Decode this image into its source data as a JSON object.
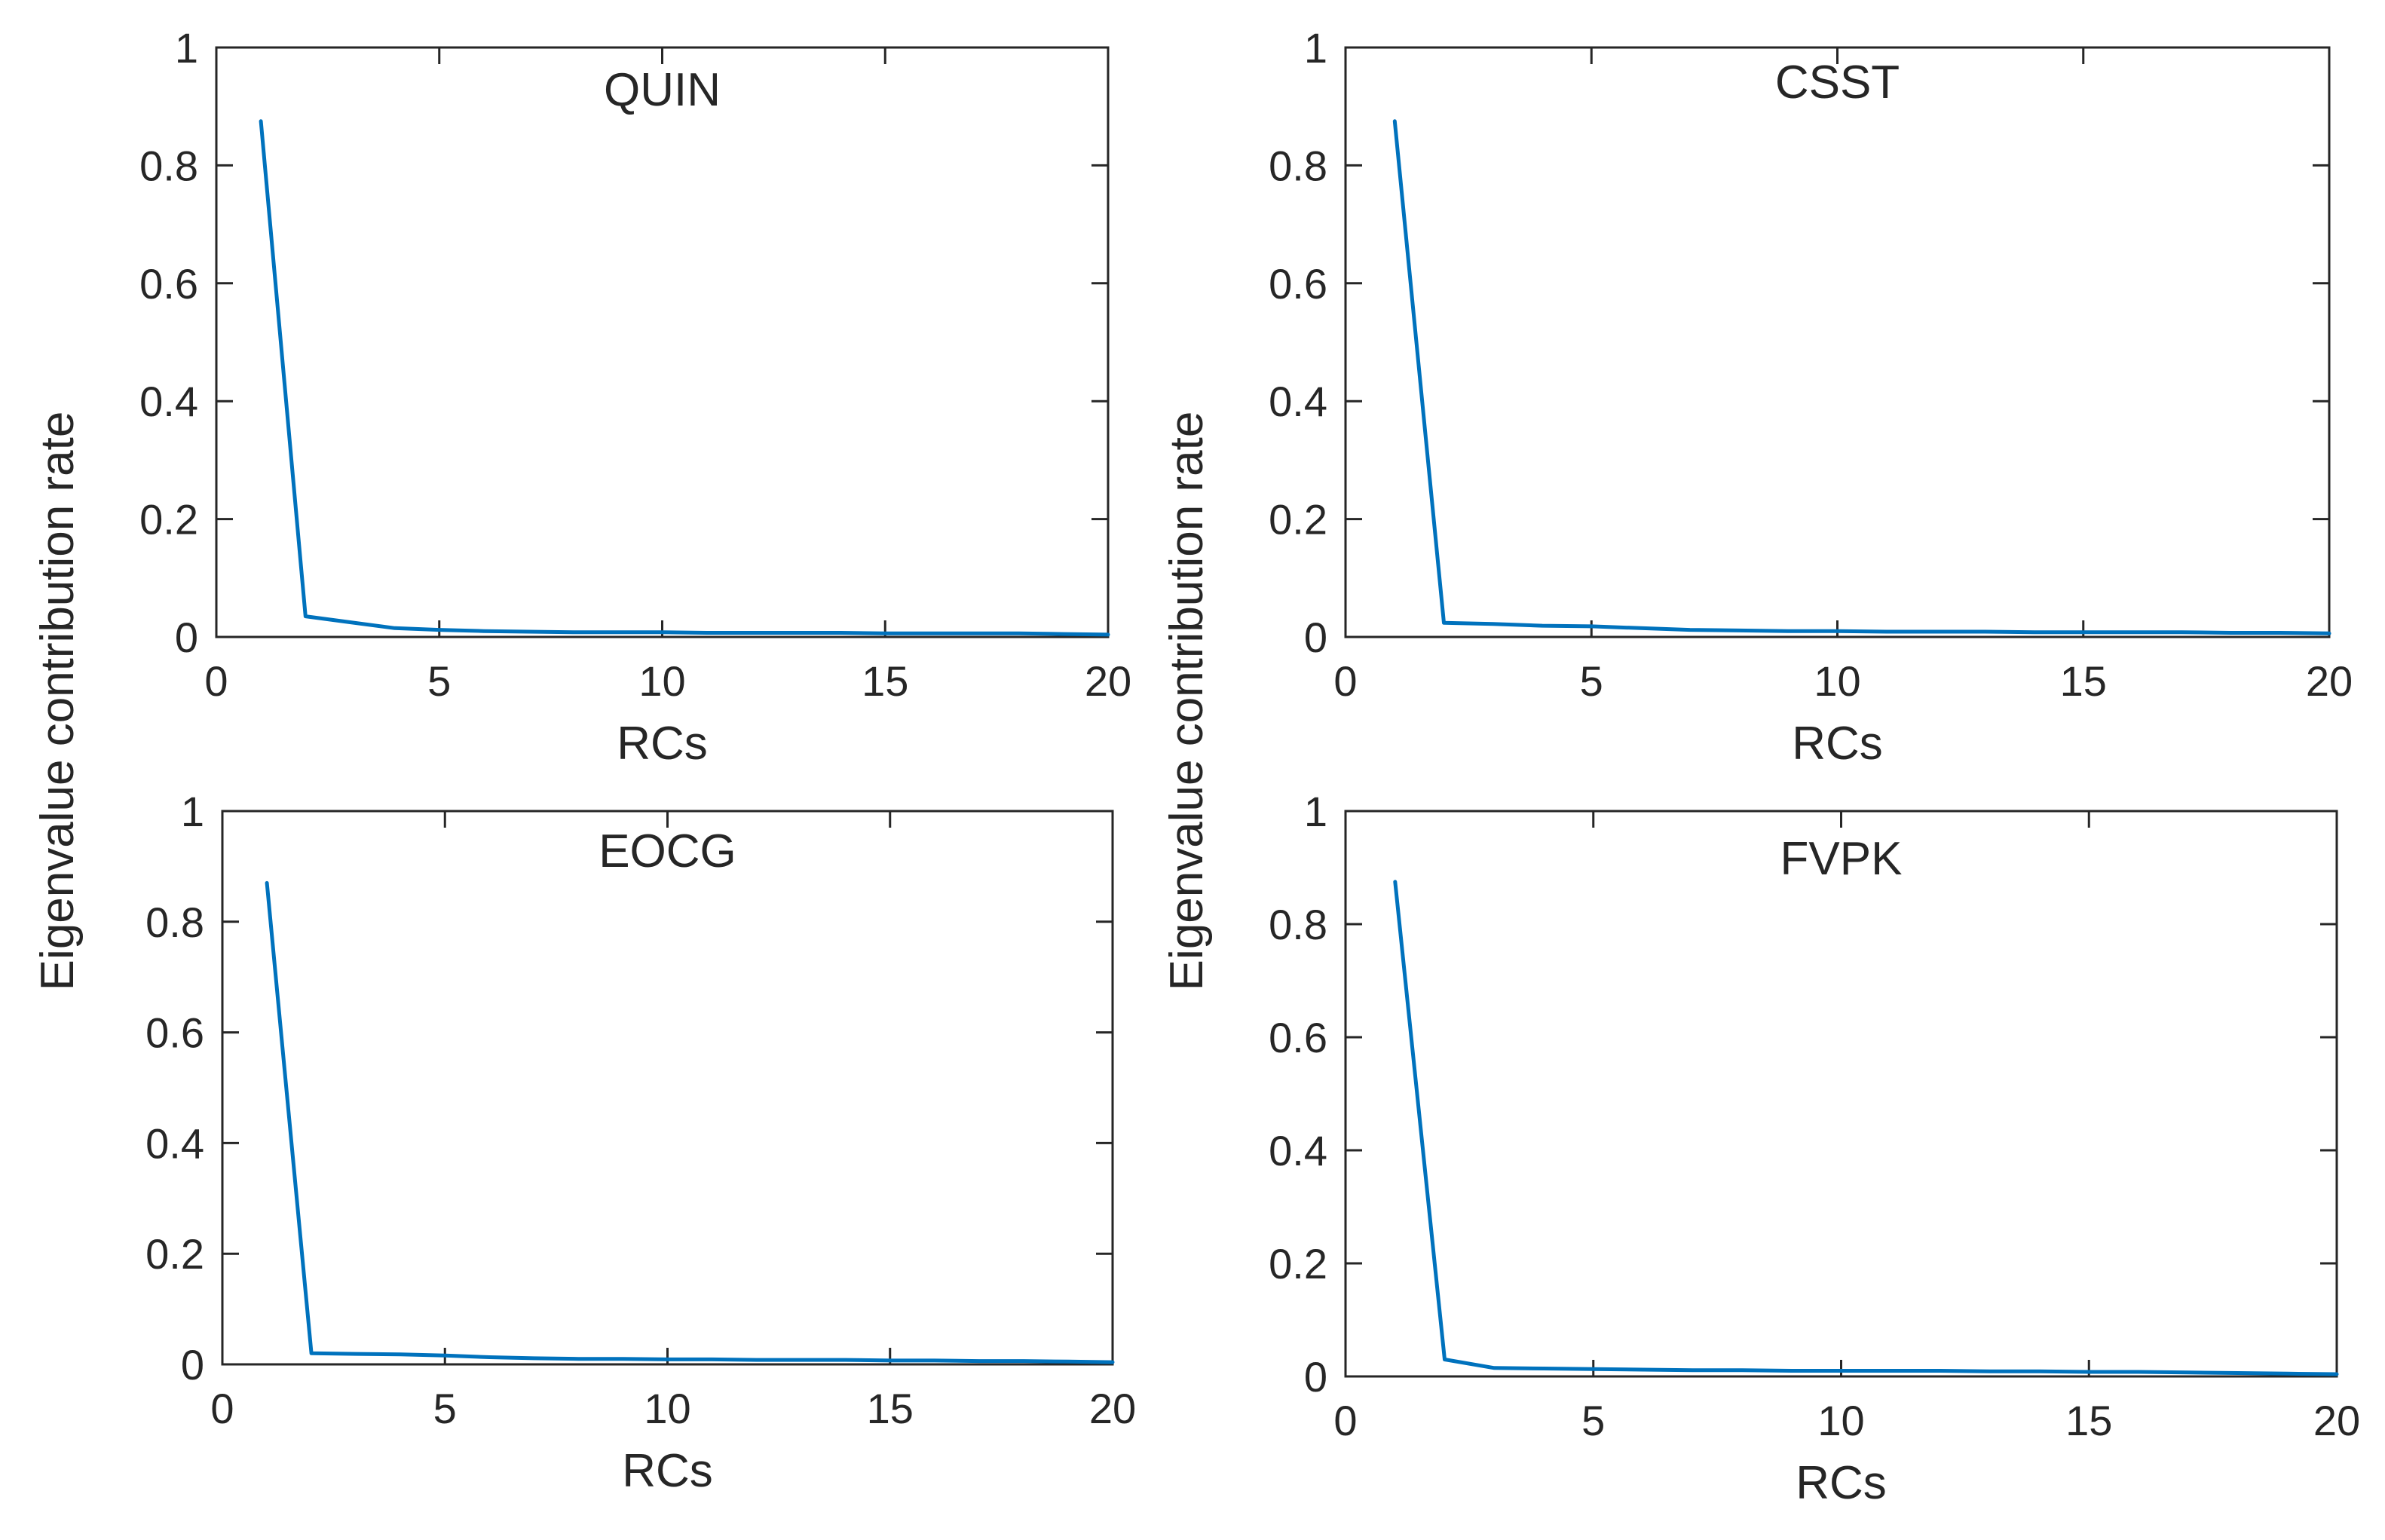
{
  "chart_data": [
    {
      "type": "line",
      "title": "QUIN",
      "xlabel": "RCs",
      "ylabel": "Eigenvalue contribution rate",
      "xlim": [
        0,
        20
      ],
      "ylim": [
        0,
        1
      ],
      "xticks": [
        "0",
        "5",
        "10",
        "15",
        "20"
      ],
      "yticks": [
        "0",
        "0.2",
        "0.4",
        "0.6",
        "0.8",
        "1"
      ],
      "grid": false,
      "series": [
        {
          "name": "QUIN",
          "color": "#0072BD",
          "x": [
            1,
            2,
            3,
            4,
            5,
            6,
            7,
            8,
            9,
            10,
            11,
            12,
            13,
            14,
            15,
            16,
            17,
            18,
            19,
            20
          ],
          "y": [
            0.875,
            0.035,
            0.025,
            0.015,
            0.012,
            0.01,
            0.009,
            0.008,
            0.008,
            0.008,
            0.007,
            0.007,
            0.007,
            0.007,
            0.006,
            0.006,
            0.006,
            0.006,
            0.005,
            0.004
          ]
        }
      ]
    },
    {
      "type": "line",
      "title": "CSST",
      "xlabel": "RCs",
      "ylabel": "Eigenvalue contribution rate",
      "xlim": [
        0,
        20
      ],
      "ylim": [
        0,
        1
      ],
      "xticks": [
        "0",
        "5",
        "10",
        "15",
        "20"
      ],
      "yticks": [
        "0",
        "0.2",
        "0.4",
        "0.6",
        "0.8",
        "1"
      ],
      "grid": false,
      "series": [
        {
          "name": "CSST",
          "color": "#0072BD",
          "x": [
            1,
            2,
            3,
            4,
            5,
            6,
            7,
            8,
            9,
            10,
            11,
            12,
            13,
            14,
            15,
            16,
            17,
            18,
            19,
            20
          ],
          "y": [
            0.875,
            0.024,
            0.022,
            0.019,
            0.018,
            0.015,
            0.012,
            0.011,
            0.01,
            0.01,
            0.009,
            0.009,
            0.009,
            0.008,
            0.008,
            0.008,
            0.008,
            0.007,
            0.007,
            0.006
          ]
        }
      ]
    },
    {
      "type": "line",
      "title": "EOCG",
      "xlabel": "RCs",
      "ylabel": "",
      "xlim": [
        0,
        20
      ],
      "ylim": [
        0,
        1
      ],
      "xticks": [
        "0",
        "5",
        "10",
        "15",
        "20"
      ],
      "yticks": [
        "0",
        "0.2",
        "0.4",
        "0.6",
        "0.8",
        "1"
      ],
      "grid": false,
      "series": [
        {
          "name": "EOCG",
          "color": "#0072BD",
          "x": [
            1,
            2,
            3,
            4,
            5,
            6,
            7,
            8,
            9,
            10,
            11,
            12,
            13,
            14,
            15,
            16,
            17,
            18,
            19,
            20
          ],
          "y": [
            0.87,
            0.02,
            0.019,
            0.018,
            0.016,
            0.013,
            0.011,
            0.01,
            0.01,
            0.009,
            0.009,
            0.008,
            0.008,
            0.008,
            0.007,
            0.007,
            0.006,
            0.006,
            0.005,
            0.004
          ]
        }
      ]
    },
    {
      "type": "line",
      "title": "FVPK",
      "xlabel": "RCs",
      "ylabel": "",
      "xlim": [
        0,
        20
      ],
      "ylim": [
        0,
        1
      ],
      "xticks": [
        "0",
        "5",
        "10",
        "15",
        "20"
      ],
      "yticks": [
        "0",
        "0.2",
        "0.4",
        "0.6",
        "0.8",
        "1"
      ],
      "grid": false,
      "series": [
        {
          "name": "FVPK",
          "color": "#0072BD",
          "x": [
            1,
            2,
            3,
            4,
            5,
            6,
            7,
            8,
            9,
            10,
            11,
            12,
            13,
            14,
            15,
            16,
            17,
            18,
            19,
            20
          ],
          "y": [
            0.875,
            0.03,
            0.015,
            0.014,
            0.013,
            0.012,
            0.011,
            0.011,
            0.01,
            0.01,
            0.01,
            0.01,
            0.009,
            0.009,
            0.008,
            0.008,
            0.007,
            0.006,
            0.005,
            0.004
          ]
        }
      ]
    }
  ]
}
